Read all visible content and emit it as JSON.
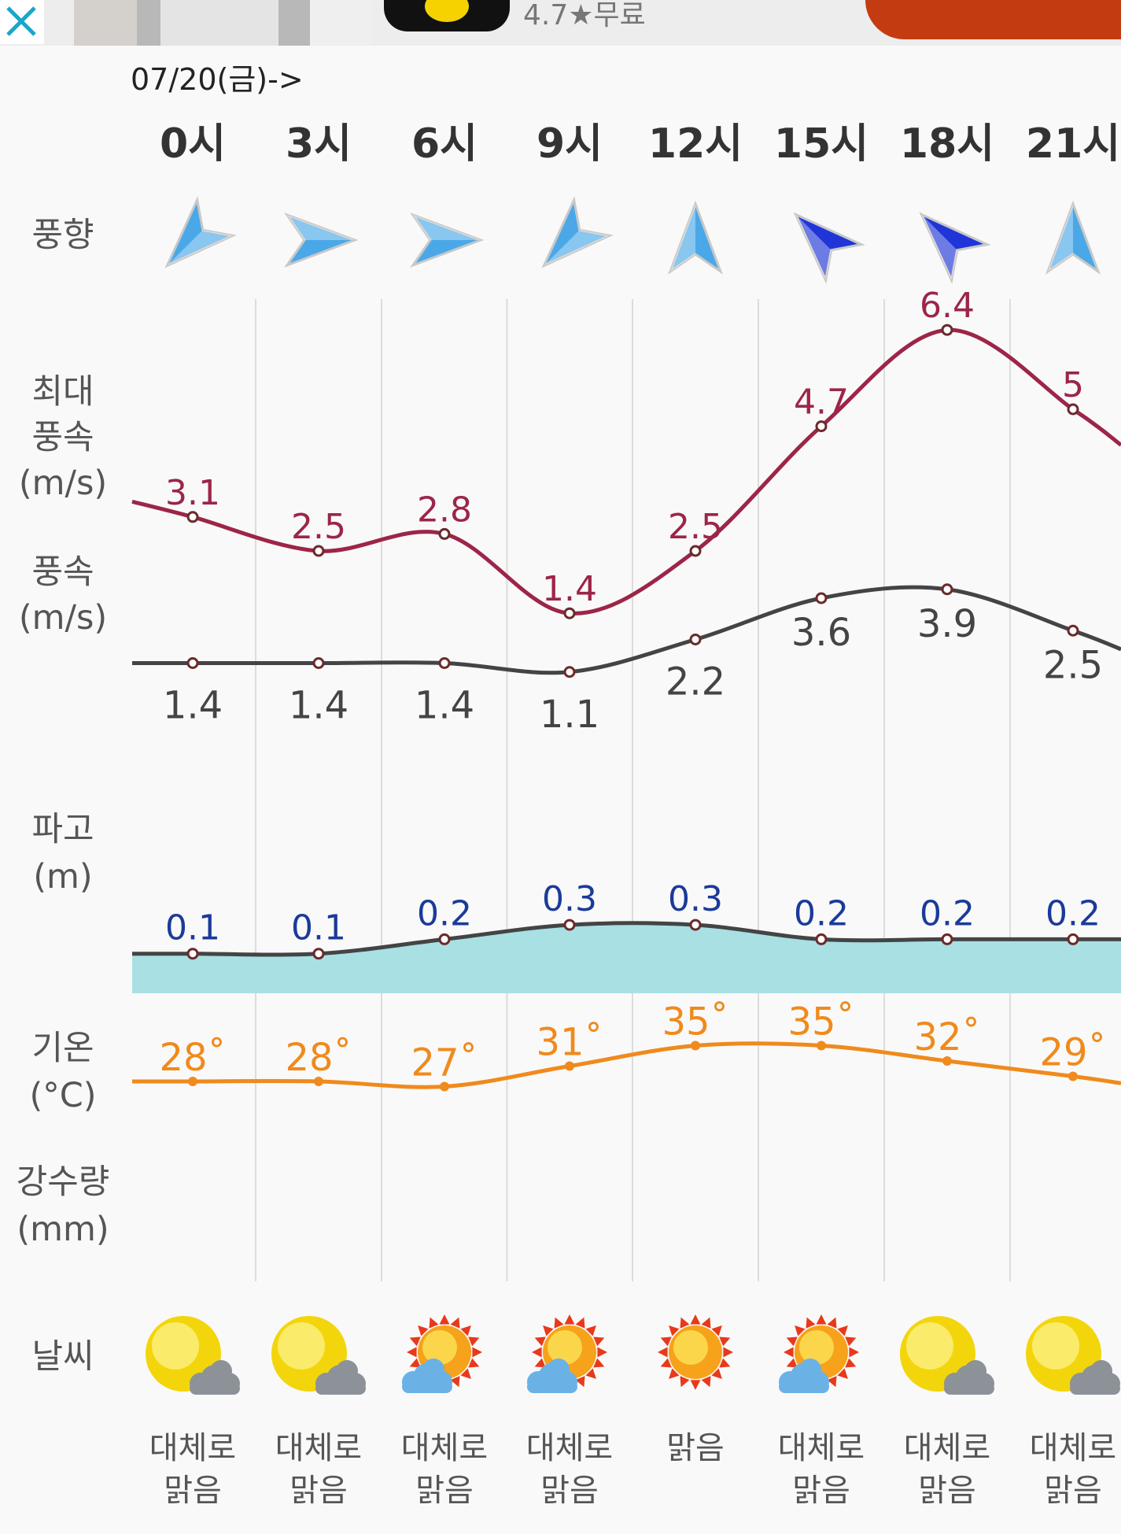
{
  "ad": {
    "close_icon": "close-icon",
    "rating": "4.7★무료"
  },
  "date_label": "07/20(금)->",
  "hours": [
    "0시",
    "3시",
    "6시",
    "9시",
    "12시",
    "15시",
    "18시",
    "21시"
  ],
  "labels": {
    "wind_dir": "풍향",
    "max_wind_1": "최대",
    "max_wind_2": "풍속",
    "max_wind_3": "(m/s)",
    "wind_1": "풍속",
    "wind_2": "(m/s)",
    "wave_1": "파고",
    "wave_2": "(m)",
    "temp_1": "기온",
    "temp_2": "(°C)",
    "precip_1": "강수량",
    "precip_2": "(mm)",
    "weather": "날씨"
  },
  "wind_direction_icons": [
    "arrow-southwest-icon",
    "arrow-east-icon",
    "arrow-east-icon",
    "arrow-southwest-icon",
    "arrow-north-icon",
    "arrow-northwest-icon",
    "arrow-northwest-icon",
    "arrow-north-icon"
  ],
  "wind_direction_degrees": [
    225,
    90,
    90,
    225,
    0,
    315,
    315,
    0
  ],
  "wind_direction_colors": [
    "#4aa8e8",
    "#4aa8e8",
    "#4aa8e8",
    "#4aa8e8",
    "#4aa8e8",
    "#2035d8",
    "#2035d8",
    "#4aa8e8"
  ],
  "chart_data": {
    "type": "line",
    "categories": [
      "0시",
      "3시",
      "6시",
      "9시",
      "12시",
      "15시",
      "18시",
      "21시"
    ],
    "series": [
      {
        "name": "최대풍속",
        "unit": "m/s",
        "values": [
          3.1,
          2.5,
          2.8,
          1.4,
          2.5,
          4.7,
          6.4,
          5
        ],
        "color": "#9c2548"
      },
      {
        "name": "풍속",
        "unit": "m/s",
        "values": [
          1.4,
          1.4,
          1.4,
          1.1,
          2.2,
          3.6,
          3.9,
          2.5
        ],
        "color": "#444444"
      },
      {
        "name": "파고",
        "unit": "m",
        "values": [
          0.1,
          0.1,
          0.2,
          0.3,
          0.3,
          0.2,
          0.2,
          0.2
        ],
        "color": "#444444",
        "fill": "#a8e0e4",
        "label_color": "#1b3a9a"
      },
      {
        "name": "기온",
        "unit": "°C",
        "values": [
          28,
          28,
          27,
          31,
          35,
          35,
          32,
          29
        ],
        "color": "#f08a1c"
      }
    ]
  },
  "wind_labels": [
    "1.4",
    "1.4",
    "1.4",
    "1.1",
    "2.2",
    "3.6",
    "3.9",
    "2.5"
  ],
  "max_wind_labels": [
    "3.1",
    "2.5",
    "2.8",
    "1.4",
    "2.5",
    "4.7",
    "6.4",
    "5"
  ],
  "wave_labels": [
    "0.1",
    "0.1",
    "0.2",
    "0.3",
    "0.3",
    "0.2",
    "0.2",
    "0.2"
  ],
  "temp_labels": [
    "28˚",
    "28˚",
    "27˚",
    "31˚",
    "35˚",
    "35˚",
    "32˚",
    "29˚"
  ],
  "weather": [
    {
      "icon": "sun-cloud-icon",
      "cond_1": "대체로",
      "cond_2": "맑음"
    },
    {
      "icon": "sun-cloud-icon",
      "cond_1": "대체로",
      "cond_2": "맑음"
    },
    {
      "icon": "bright-sun-cloud-icon",
      "cond_1": "대체로",
      "cond_2": "맑음"
    },
    {
      "icon": "bright-sun-cloud-icon",
      "cond_1": "대체로",
      "cond_2": "맑음"
    },
    {
      "icon": "bright-sun-icon",
      "cond_1": "맑음",
      "cond_2": ""
    },
    {
      "icon": "bright-sun-cloud-icon",
      "cond_1": "대체로",
      "cond_2": "맑음"
    },
    {
      "icon": "sun-cloud-icon",
      "cond_1": "대체로",
      "cond_2": "맑음"
    },
    {
      "icon": "sun-cloud-icon",
      "cond_1": "대체로",
      "cond_2": "맑음"
    }
  ]
}
